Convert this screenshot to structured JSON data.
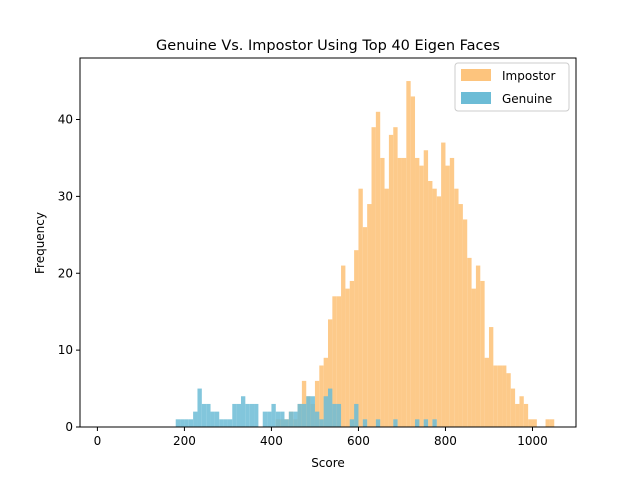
{
  "chart_data": {
    "type": "histogram",
    "title": "Genuine Vs. Impostor Using Top 40 Eigen Faces",
    "xlabel": "Score",
    "ylabel": "Frequency",
    "xlim": [
      -40,
      1100
    ],
    "ylim": [
      0,
      48
    ],
    "xticks": [
      0,
      200,
      400,
      600,
      800,
      1000
    ],
    "yticks": [
      0,
      10,
      20,
      30,
      40
    ],
    "legend_position": "top-right",
    "bin_width": 10,
    "series": [
      {
        "name": "Impostor",
        "color": "#fdc47d",
        "alpha": 0.9,
        "bins": [
          {
            "x": 410,
            "count": 1
          },
          {
            "x": 420,
            "count": 1
          },
          {
            "x": 430,
            "count": 1
          },
          {
            "x": 440,
            "count": 2
          },
          {
            "x": 450,
            "count": 1
          },
          {
            "x": 460,
            "count": 3
          },
          {
            "x": 470,
            "count": 6
          },
          {
            "x": 480,
            "count": 4
          },
          {
            "x": 490,
            "count": 3
          },
          {
            "x": 500,
            "count": 6
          },
          {
            "x": 510,
            "count": 8
          },
          {
            "x": 520,
            "count": 9
          },
          {
            "x": 530,
            "count": 14
          },
          {
            "x": 540,
            "count": 17
          },
          {
            "x": 550,
            "count": 17
          },
          {
            "x": 560,
            "count": 21
          },
          {
            "x": 570,
            "count": 18
          },
          {
            "x": 580,
            "count": 19
          },
          {
            "x": 590,
            "count": 23
          },
          {
            "x": 600,
            "count": 31
          },
          {
            "x": 610,
            "count": 26
          },
          {
            "x": 620,
            "count": 29
          },
          {
            "x": 630,
            "count": 39
          },
          {
            "x": 640,
            "count": 41
          },
          {
            "x": 650,
            "count": 35
          },
          {
            "x": 660,
            "count": 31
          },
          {
            "x": 670,
            "count": 38
          },
          {
            "x": 680,
            "count": 39
          },
          {
            "x": 690,
            "count": 35
          },
          {
            "x": 700,
            "count": 35
          },
          {
            "x": 710,
            "count": 45
          },
          {
            "x": 720,
            "count": 43
          },
          {
            "x": 730,
            "count": 35
          },
          {
            "x": 740,
            "count": 34
          },
          {
            "x": 750,
            "count": 36
          },
          {
            "x": 760,
            "count": 32
          },
          {
            "x": 770,
            "count": 31
          },
          {
            "x": 780,
            "count": 30
          },
          {
            "x": 790,
            "count": 37
          },
          {
            "x": 800,
            "count": 34
          },
          {
            "x": 810,
            "count": 35
          },
          {
            "x": 820,
            "count": 31
          },
          {
            "x": 830,
            "count": 29
          },
          {
            "x": 840,
            "count": 27
          },
          {
            "x": 850,
            "count": 22
          },
          {
            "x": 860,
            "count": 18
          },
          {
            "x": 870,
            "count": 21
          },
          {
            "x": 880,
            "count": 19
          },
          {
            "x": 890,
            "count": 9
          },
          {
            "x": 900,
            "count": 13
          },
          {
            "x": 910,
            "count": 8
          },
          {
            "x": 920,
            "count": 8
          },
          {
            "x": 930,
            "count": 8
          },
          {
            "x": 940,
            "count": 7
          },
          {
            "x": 950,
            "count": 5
          },
          {
            "x": 960,
            "count": 3
          },
          {
            "x": 970,
            "count": 4
          },
          {
            "x": 980,
            "count": 3
          },
          {
            "x": 990,
            "count": 1
          },
          {
            "x": 1000,
            "count": 1
          },
          {
            "x": 1030,
            "count": 1
          },
          {
            "x": 1040,
            "count": 1
          }
        ]
      },
      {
        "name": "Genuine",
        "color": "#6cbcd6",
        "alpha": 0.85,
        "bins": [
          {
            "x": 180,
            "count": 1
          },
          {
            "x": 190,
            "count": 1
          },
          {
            "x": 200,
            "count": 1
          },
          {
            "x": 210,
            "count": 1
          },
          {
            "x": 220,
            "count": 2
          },
          {
            "x": 230,
            "count": 5
          },
          {
            "x": 240,
            "count": 3
          },
          {
            "x": 250,
            "count": 3
          },
          {
            "x": 260,
            "count": 2
          },
          {
            "x": 270,
            "count": 2
          },
          {
            "x": 280,
            "count": 1
          },
          {
            "x": 290,
            "count": 1
          },
          {
            "x": 300,
            "count": 1
          },
          {
            "x": 310,
            "count": 3
          },
          {
            "x": 320,
            "count": 3
          },
          {
            "x": 330,
            "count": 4
          },
          {
            "x": 340,
            "count": 3
          },
          {
            "x": 350,
            "count": 3
          },
          {
            "x": 360,
            "count": 3
          },
          {
            "x": 380,
            "count": 2
          },
          {
            "x": 390,
            "count": 2
          },
          {
            "x": 400,
            "count": 3
          },
          {
            "x": 410,
            "count": 2
          },
          {
            "x": 420,
            "count": 2
          },
          {
            "x": 430,
            "count": 1
          },
          {
            "x": 440,
            "count": 2
          },
          {
            "x": 450,
            "count": 2
          },
          {
            "x": 460,
            "count": 3
          },
          {
            "x": 470,
            "count": 3
          },
          {
            "x": 480,
            "count": 4
          },
          {
            "x": 490,
            "count": 4
          },
          {
            "x": 500,
            "count": 2
          },
          {
            "x": 510,
            "count": 1
          },
          {
            "x": 520,
            "count": 4
          },
          {
            "x": 530,
            "count": 5
          },
          {
            "x": 540,
            "count": 3
          },
          {
            "x": 550,
            "count": 3
          },
          {
            "x": 580,
            "count": 1
          },
          {
            "x": 590,
            "count": 3
          },
          {
            "x": 610,
            "count": 1
          },
          {
            "x": 640,
            "count": 1
          },
          {
            "x": 680,
            "count": 1
          },
          {
            "x": 730,
            "count": 1
          },
          {
            "x": 750,
            "count": 1
          },
          {
            "x": 770,
            "count": 1
          }
        ]
      }
    ]
  }
}
